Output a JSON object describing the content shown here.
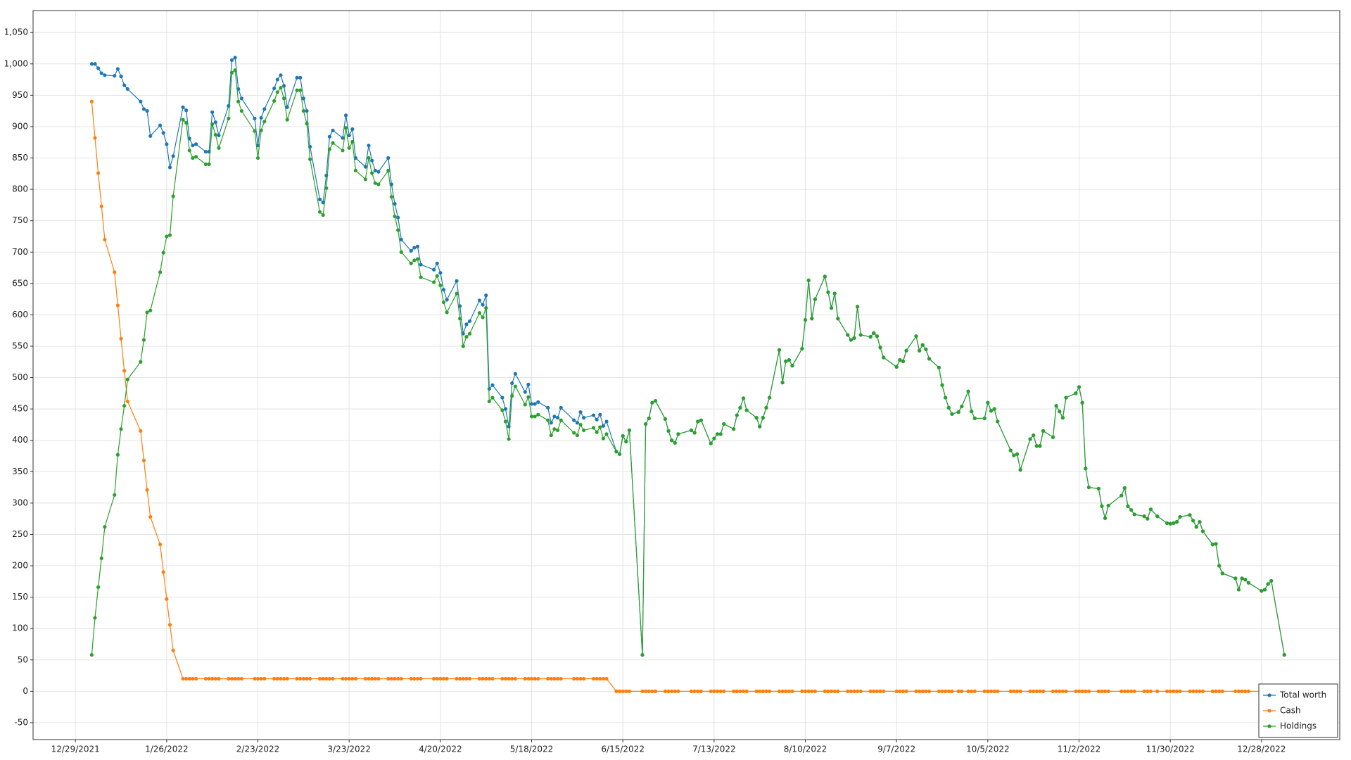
{
  "chart_data": {
    "type": "line",
    "x": [
      "1/3/2022",
      "1/4/2022",
      "1/5/2022",
      "1/6/2022",
      "1/7/2022",
      "1/10/2022",
      "1/11/2022",
      "1/12/2022",
      "1/13/2022",
      "1/14/2022",
      "1/18/2022",
      "1/19/2022",
      "1/20/2022",
      "1/21/2022",
      "1/24/2022",
      "1/25/2022",
      "1/26/2022",
      "1/27/2022",
      "1/28/2022",
      "1/31/2022",
      "2/1/2022",
      "2/2/2022",
      "2/3/2022",
      "2/4/2022",
      "2/7/2022",
      "2/8/2022",
      "2/9/2022",
      "2/10/2022",
      "2/11/2022",
      "2/14/2022",
      "2/15/2022",
      "2/16/2022",
      "2/17/2022",
      "2/18/2022",
      "2/22/2022",
      "2/23/2022",
      "2/24/2022",
      "2/25/2022",
      "2/28/2022",
      "3/1/2022",
      "3/2/2022",
      "3/3/2022",
      "3/4/2022",
      "3/7/2022",
      "3/8/2022",
      "3/9/2022",
      "3/10/2022",
      "3/11/2022",
      "3/14/2022",
      "3/15/2022",
      "3/16/2022",
      "3/17/2022",
      "3/18/2022",
      "3/21/2022",
      "3/22/2022",
      "3/23/2022",
      "3/24/2022",
      "3/25/2022",
      "3/28/2022",
      "3/29/2022",
      "3/30/2022",
      "3/31/2022",
      "4/1/2022",
      "4/4/2022",
      "4/5/2022",
      "4/6/2022",
      "4/7/2022",
      "4/8/2022",
      "4/11/2022",
      "4/12/2022",
      "4/13/2022",
      "4/14/2022",
      "4/18/2022",
      "4/19/2022",
      "4/20/2022",
      "4/21/2022",
      "4/22/2022",
      "4/25/2022",
      "4/26/2022",
      "4/27/2022",
      "4/28/2022",
      "4/29/2022",
      "5/2/2022",
      "5/3/2022",
      "5/4/2022",
      "5/5/2022",
      "5/6/2022",
      "5/9/2022",
      "5/10/2022",
      "5/11/2022",
      "5/12/2022",
      "5/13/2022",
      "5/16/2022",
      "5/17/2022",
      "5/18/2022",
      "5/19/2022",
      "5/20/2022",
      "5/23/2022",
      "5/24/2022",
      "5/25/2022",
      "5/26/2022",
      "5/27/2022",
      "5/31/2022",
      "6/1/2022",
      "6/2/2022",
      "6/3/2022",
      "6/6/2022",
      "6/7/2022",
      "6/8/2022",
      "6/9/2022",
      "6/10/2022",
      "6/13/2022",
      "6/14/2022",
      "6/15/2022",
      "6/16/2022",
      "6/17/2022",
      "6/21/2022",
      "6/22/2022",
      "6/23/2022",
      "6/24/2022",
      "6/25/2022",
      "6/28/2022",
      "6/29/2022",
      "6/30/2022",
      "7/1/2022",
      "7/2/2022",
      "7/6/2022",
      "7/7/2022",
      "7/8/2022",
      "7/9/2022",
      "7/12/2022",
      "7/13/2022",
      "7/14/2022",
      "7/15/2022",
      "7/16/2022",
      "7/19/2022",
      "7/20/2022",
      "7/21/2022",
      "7/22/2022",
      "7/23/2022",
      "7/26/2022",
      "7/27/2022",
      "7/28/2022",
      "7/29/2022",
      "7/30/2022",
      "8/2/2022",
      "8/3/2022",
      "8/4/2022",
      "8/5/2022",
      "8/6/2022",
      "8/9/2022",
      "8/10/2022",
      "8/11/2022",
      "8/12/2022",
      "8/13/2022",
      "8/16/2022",
      "8/17/2022",
      "8/18/2022",
      "8/19/2022",
      "8/20/2022",
      "8/23/2022",
      "8/24/2022",
      "8/25/2022",
      "8/26/2022",
      "8/27/2022",
      "8/30/2022",
      "8/31/2022",
      "9/1/2022",
      "9/2/2022",
      "9/3/2022",
      "9/7/2022",
      "9/8/2022",
      "9/9/2022",
      "9/10/2022",
      "9/13/2022",
      "9/14/2022",
      "9/15/2022",
      "9/16/2022",
      "9/17/2022",
      "9/20/2022",
      "9/21/2022",
      "9/22/2022",
      "9/23/2022",
      "9/24/2022",
      "9/26/2022",
      "9/27/2022",
      "9/29/2022",
      "9/30/2022",
      "10/1/2022",
      "10/4/2022",
      "10/5/2022",
      "10/6/2022",
      "10/7/2022",
      "10/8/2022",
      "10/12/2022",
      "10/13/2022",
      "10/14/2022",
      "10/15/2022",
      "10/18/2022",
      "10/19/2022",
      "10/20/2022",
      "10/21/2022",
      "10/22/2022",
      "10/25/2022",
      "10/26/2022",
      "10/27/2022",
      "10/28/2022",
      "10/29/2022",
      "11/1/2022",
      "11/2/2022",
      "11/3/2022",
      "11/4/2022",
      "11/5/2022",
      "11/8/2022",
      "11/9/2022",
      "11/10/2022",
      "11/11/2022",
      "11/15/2022",
      "11/16/2022",
      "11/17/2022",
      "11/18/2022",
      "11/19/2022",
      "11/22/2022",
      "11/23/2022",
      "11/24/2022",
      "11/26/2022",
      "11/29/2022",
      "11/30/2022",
      "12/1/2022",
      "12/2/2022",
      "12/3/2022",
      "12/6/2022",
      "12/7/2022",
      "12/8/2022",
      "12/9/2022",
      "12/10/2022",
      "12/13/2022",
      "12/14/2022",
      "12/15/2022",
      "12/16/2022",
      "12/20/2022",
      "12/21/2022",
      "12/22/2022",
      "12/23/2022",
      "12/24/2022",
      "12/28/2022",
      "12/29/2022",
      "12/30/2022",
      "12/31/2022",
      "1/4/2023"
    ],
    "series": [
      {
        "name": "Total worth",
        "color": "#1f77b4",
        "values": [
          1000,
          1000,
          993,
          985,
          982,
          981,
          992,
          980,
          966,
          960,
          940,
          928,
          925,
          885,
          902,
          890,
          872,
          835,
          853,
          931,
          926,
          881,
          870,
          872,
          860,
          860,
          923,
          907,
          886,
          933,
          1006,
          1010,
          960,
          945,
          913,
          870,
          914,
          928,
          961,
          975,
          982,
          965,
          931,
          978,
          978,
          945,
          925,
          868,
          784,
          779,
          822,
          884,
          894,
          882,
          918,
          886,
          896,
          850,
          836,
          870,
          846,
          830,
          828,
          850,
          808,
          777,
          755,
          720,
          702,
          707,
          709,
          680,
          672,
          682,
          667,
          640,
          624,
          654,
          614,
          570,
          585,
          590,
          623,
          616,
          631,
          482,
          488,
          468,
          450,
          422,
          491,
          506,
          477,
          489,
          458,
          458,
          461,
          452,
          428,
          438,
          436,
          452,
          432,
          428,
          445,
          436,
          440,
          433,
          441,
          423,
          430,
          382,
          378,
          407,
          398,
          416,
          58,
          426,
          435,
          460,
          463,
          434,
          415,
          400,
          396,
          410,
          416,
          412,
          430,
          432,
          395,
          403,
          410,
          410,
          426,
          418,
          440,
          452,
          467,
          448,
          436,
          422,
          436,
          452,
          468,
          544,
          492,
          526,
          528,
          519,
          546,
          592,
          655,
          594,
          625,
          661,
          636,
          611,
          634,
          594,
          568,
          560,
          563,
          613,
          568,
          565,
          571,
          566,
          548,
          532,
          517,
          528,
          526,
          543,
          566,
          543,
          552,
          545,
          530,
          516,
          488,
          468,
          452,
          442,
          445,
          454,
          478,
          446,
          435,
          435,
          460,
          447,
          450,
          430,
          384,
          376,
          378,
          353,
          402,
          408,
          391,
          391,
          415,
          405,
          455,
          446,
          436,
          468,
          475,
          485,
          460,
          355,
          325,
          323,
          295,
          276,
          296,
          312,
          324,
          295,
          289,
          282,
          279,
          275,
          290,
          279,
          268,
          267,
          268,
          270,
          278,
          281,
          272,
          262,
          270,
          255,
          234,
          235,
          200,
          188,
          180,
          162,
          180,
          178,
          173,
          160,
          162,
          171,
          176,
          58
        ]
      },
      {
        "name": "Cash",
        "color": "#ff7f0e",
        "values": [
          940,
          882,
          826,
          773,
          720,
          668,
          615,
          562,
          511,
          462,
          415,
          368,
          321,
          278,
          234,
          190,
          147,
          106,
          65,
          20,
          20,
          20,
          20,
          20,
          20,
          20,
          20,
          20,
          20,
          20,
          20,
          20,
          20,
          20,
          20,
          20,
          20,
          20,
          20,
          20,
          20,
          20,
          20,
          20,
          20,
          20,
          20,
          20,
          20,
          20,
          20,
          20,
          20,
          20,
          20,
          20,
          20,
          20,
          20,
          20,
          20,
          20,
          20,
          20,
          20,
          20,
          20,
          20,
          20,
          20,
          20,
          20,
          20,
          20,
          20,
          20,
          20,
          20,
          20,
          20,
          20,
          20,
          20,
          20,
          20,
          20,
          20,
          20,
          20,
          20,
          20,
          20,
          20,
          20,
          20,
          20,
          20,
          20,
          20,
          20,
          20,
          20,
          20,
          20,
          20,
          20,
          20,
          20,
          20,
          20,
          20,
          0,
          0,
          0,
          0,
          0,
          0,
          0,
          0,
          0,
          0,
          0,
          0,
          0,
          0,
          0,
          0,
          0,
          0,
          0,
          0,
          0,
          0,
          0,
          0,
          0,
          0,
          0,
          0,
          0,
          0,
          0,
          0,
          0,
          0,
          0,
          0,
          0,
          0,
          0,
          0,
          0,
          0,
          0,
          0,
          0,
          0,
          0,
          0,
          0,
          0,
          0,
          0,
          0,
          0,
          0,
          0,
          0,
          0,
          0,
          0,
          0,
          0,
          0,
          0,
          0,
          0,
          0,
          0,
          0,
          0,
          0,
          0,
          0,
          0,
          0,
          0,
          0,
          0,
          0,
          0,
          0,
          0,
          0,
          0,
          0,
          0,
          0,
          0,
          0,
          0,
          0,
          0,
          0,
          0,
          0,
          0,
          0,
          0,
          0,
          0,
          0,
          0,
          0,
          0,
          0,
          0,
          0,
          0,
          0,
          0,
          0,
          0,
          0,
          0,
          0,
          0,
          0,
          0,
          0,
          0,
          0,
          0,
          0,
          0,
          0,
          0,
          0,
          0,
          0,
          0,
          0,
          0,
          0,
          0,
          0,
          0,
          0,
          0,
          0
        ]
      },
      {
        "name": "Holdings",
        "color": "#2ca02c",
        "values": [
          58,
          117,
          166,
          212,
          262,
          313,
          377,
          418,
          455,
          497,
          525,
          560,
          604,
          607,
          668,
          699,
          725,
          727,
          789,
          911,
          906,
          862,
          850,
          852,
          840,
          840,
          904,
          887,
          866,
          913,
          986,
          990,
          940,
          925,
          893,
          850,
          894,
          908,
          941,
          955,
          962,
          945,
          911,
          958,
          958,
          925,
          905,
          848,
          764,
          759,
          802,
          864,
          874,
          862,
          898,
          866,
          876,
          830,
          816,
          850,
          826,
          810,
          808,
          830,
          788,
          757,
          735,
          700,
          682,
          687,
          689,
          660,
          652,
          662,
          647,
          620,
          604,
          634,
          594,
          550,
          565,
          570,
          603,
          596,
          611,
          462,
          468,
          448,
          430,
          402,
          471,
          486,
          457,
          469,
          438,
          438,
          441,
          432,
          408,
          418,
          416,
          432,
          412,
          408,
          425,
          416,
          420,
          413,
          421,
          403,
          410,
          382,
          378,
          407,
          398,
          416,
          58,
          426,
          435,
          460,
          463,
          434,
          415,
          400,
          396,
          410,
          416,
          412,
          430,
          432,
          395,
          403,
          410,
          410,
          426,
          418,
          440,
          452,
          467,
          448,
          436,
          422,
          436,
          452,
          468,
          544,
          492,
          526,
          528,
          519,
          546,
          592,
          655,
          594,
          625,
          661,
          636,
          611,
          634,
          594,
          568,
          560,
          563,
          613,
          568,
          565,
          571,
          566,
          548,
          532,
          517,
          528,
          526,
          543,
          566,
          543,
          552,
          545,
          530,
          516,
          488,
          468,
          452,
          442,
          445,
          454,
          478,
          446,
          435,
          435,
          460,
          447,
          450,
          430,
          384,
          376,
          378,
          353,
          402,
          408,
          391,
          391,
          415,
          405,
          455,
          446,
          436,
          468,
          475,
          485,
          460,
          355,
          325,
          323,
          295,
          276,
          296,
          312,
          324,
          295,
          289,
          282,
          279,
          275,
          290,
          279,
          268,
          267,
          268,
          270,
          278,
          281,
          272,
          262,
          270,
          255,
          234,
          235,
          200,
          188,
          180,
          162,
          180,
          178,
          173,
          160,
          162,
          171,
          176,
          58
        ]
      }
    ],
    "xlim": [
      "12/16/2021",
      "1/21/2023"
    ],
    "xticks": [
      "12/29/2021",
      "1/26/2022",
      "2/23/2022",
      "3/23/2022",
      "4/20/2022",
      "5/18/2022",
      "6/15/2022",
      "7/13/2022",
      "8/10/2022",
      "9/7/2022",
      "10/5/2022",
      "11/2/2022",
      "11/30/2022",
      "12/28/2022"
    ],
    "ylim": [
      -77,
      1085
    ],
    "yticks": [
      -50,
      0,
      50,
      100,
      150,
      200,
      250,
      300,
      350,
      400,
      450,
      500,
      550,
      600,
      650,
      700,
      750,
      800,
      850,
      900,
      950,
      {
        "value": 1000,
        "label": "1,000"
      },
      {
        "value": 1050,
        "label": "1,050"
      }
    ],
    "grid": true,
    "legend": "lower right"
  }
}
